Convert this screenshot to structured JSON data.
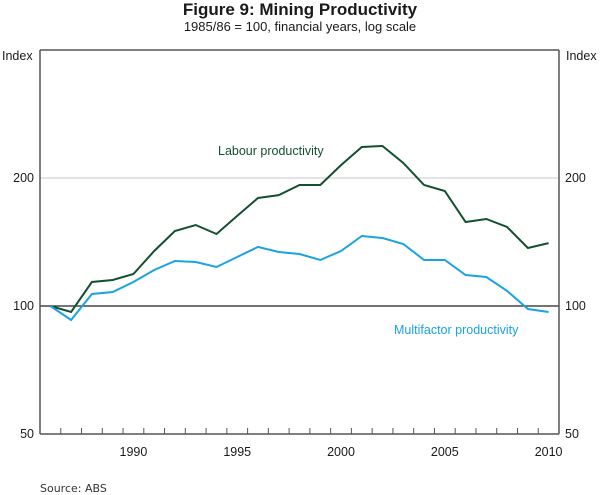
{
  "chart_data": {
    "type": "line",
    "title": "Figure 9: Mining Productivity",
    "subtitle": "1985/86 = 100, financial years, log scale",
    "ylabel_left": "Index",
    "ylabel_right": "Index",
    "xlabel": "",
    "yscale": "log",
    "ylim": [
      50,
      400
    ],
    "yticks": [
      50,
      100,
      200
    ],
    "ytick_labels": [
      "50",
      "100",
      "200"
    ],
    "xlim": [
      1985,
      2010
    ],
    "xticks_labeled": [
      1990,
      1995,
      2000,
      2005,
      2010
    ],
    "xtick_labels": [
      "1990",
      "1995",
      "2000",
      "2005",
      "2010"
    ],
    "gridlines": [
      200
    ],
    "reference_line": 100,
    "x": [
      "1985/86",
      "1986/87",
      "1987/88",
      "1988/89",
      "1989/90",
      "1990/91",
      "1991/92",
      "1992/93",
      "1993/94",
      "1994/95",
      "1995/96",
      "1996/97",
      "1997/98",
      "1998/99",
      "1999/00",
      "2000/01",
      "2001/02",
      "2002/03",
      "2003/04",
      "2004/05",
      "2005/06",
      "2006/07",
      "2007/08",
      "2008/09",
      "2009/10"
    ],
    "series": [
      {
        "name": "Labour productivity",
        "color": "#13502f",
        "values": [
          100,
          96.8,
          113.9,
          115.1,
          118.9,
          134.7,
          150.1,
          155.1,
          147.7,
          162.9,
          179.5,
          182.3,
          192.6,
          192.6,
          214.5,
          236.6,
          237.8,
          216.9,
          192.6,
          186.4,
          157.6,
          160.2,
          153.4,
          136.9,
          140.6
        ]
      },
      {
        "name": "Multifactor productivity",
        "color": "#1aa3e0",
        "values": [
          100,
          92.7,
          106.7,
          107.9,
          113.9,
          121.5,
          127.6,
          126.9,
          123.5,
          130.4,
          137.7,
          134.0,
          132.5,
          128.3,
          134.7,
          146.1,
          144.5,
          139.9,
          128.3,
          128.3,
          118.3,
          117.0,
          108.5,
          98.4,
          96.8
        ]
      }
    ],
    "annotations": [
      {
        "text": "Labour productivity",
        "series": "Labour productivity"
      },
      {
        "text": "Multifactor productivity",
        "series": "Multifactor productivity"
      }
    ],
    "source": "Source: ABS"
  }
}
